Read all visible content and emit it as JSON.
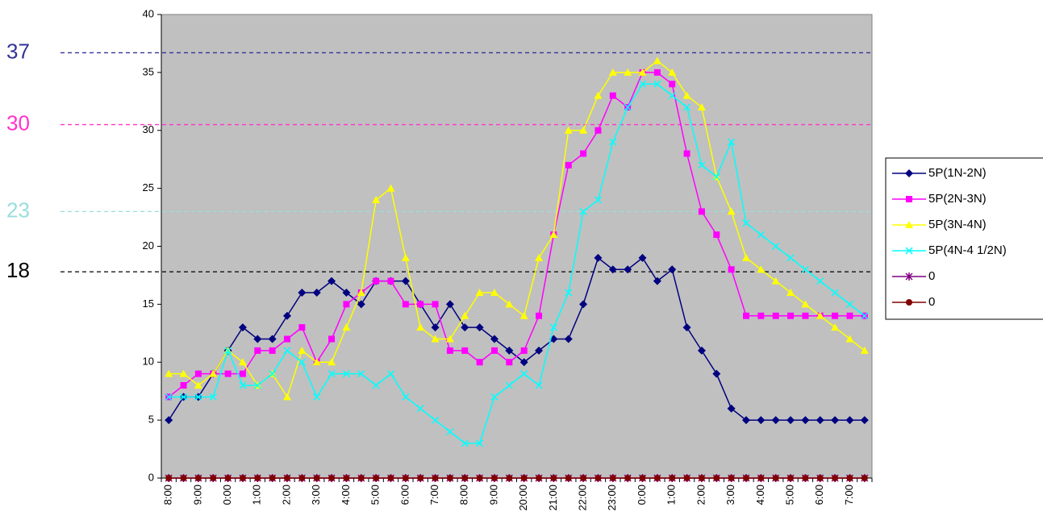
{
  "chart_data": {
    "type": "line",
    "categories": [
      "8:00",
      null,
      "9:00",
      null,
      "0:00",
      null,
      "1:00",
      null,
      "2:00",
      null,
      "3:00",
      null,
      "4:00",
      null,
      "5:00",
      null,
      "6:00",
      null,
      "7:00",
      null,
      "8:00",
      null,
      "9:00",
      null,
      "20:00",
      null,
      "21:00",
      null,
      "22:00",
      null,
      "23:00",
      null,
      "0:00",
      null,
      "1:00",
      null,
      "2:00",
      null,
      "3:00",
      null,
      "4:00",
      null,
      "5:00",
      null,
      "6:00",
      null,
      "7:00",
      null
    ],
    "series": [
      {
        "name": "5P(1N-2N)",
        "color": "#000080",
        "marker": "diamond",
        "values": [
          5,
          7,
          7,
          9,
          11,
          13,
          12,
          12,
          14,
          16,
          16,
          17,
          16,
          15,
          17,
          17,
          17,
          15,
          13,
          15,
          13,
          13,
          12,
          11,
          10,
          11,
          12,
          12,
          15,
          19,
          18,
          18,
          19,
          17,
          18,
          13,
          11,
          9,
          6,
          5,
          5,
          5,
          5,
          5,
          5,
          5,
          5,
          5
        ]
      },
      {
        "name": "5P(2N-3N)",
        "color": "#ff00ff",
        "marker": "square",
        "values": [
          7,
          8,
          9,
          9,
          9,
          9,
          11,
          11,
          12,
          13,
          10,
          12,
          15,
          16,
          17,
          17,
          15,
          15,
          15,
          11,
          11,
          10,
          11,
          10,
          11,
          14,
          21,
          27,
          28,
          30,
          33,
          32,
          35,
          35,
          34,
          28,
          23,
          21,
          18,
          14,
          14,
          14,
          14,
          14,
          14,
          14,
          14,
          14
        ]
      },
      {
        "name": "5P(3N-4N)",
        "color": "#ffff00",
        "marker": "triangle",
        "values": [
          9,
          9,
          8,
          9,
          11,
          10,
          8,
          9,
          7,
          11,
          10,
          10,
          13,
          16,
          24,
          25,
          19,
          13,
          12,
          12,
          14,
          16,
          16,
          15,
          14,
          19,
          21,
          30,
          30,
          33,
          35,
          35,
          35,
          36,
          35,
          33,
          32,
          26,
          23,
          19,
          18,
          17,
          16,
          15,
          14,
          13,
          12,
          11
        ]
      },
      {
        "name": "5P(4N-4 1/2N)",
        "color": "#00ffff",
        "marker": "x",
        "values": [
          7,
          7,
          7,
          7,
          11,
          8,
          8,
          9,
          11,
          10,
          7,
          9,
          9,
          9,
          8,
          9,
          7,
          6,
          5,
          4,
          3,
          3,
          7,
          8,
          9,
          8,
          13,
          16,
          23,
          24,
          29,
          32,
          34,
          34,
          33,
          32,
          27,
          26,
          29,
          22,
          21,
          20,
          19,
          18,
          17,
          16,
          15,
          14
        ]
      },
      {
        "name": "0",
        "color": "#800080",
        "marker": "asterisk",
        "values": [
          0,
          0,
          0,
          0,
          0,
          0,
          0,
          0,
          0,
          0,
          0,
          0,
          0,
          0,
          0,
          0,
          0,
          0,
          0,
          0,
          0,
          0,
          0,
          0,
          0,
          0,
          0,
          0,
          0,
          0,
          0,
          0,
          0,
          0,
          0,
          0,
          0,
          0,
          0,
          0,
          0,
          0,
          0,
          0,
          0,
          0,
          0,
          0
        ]
      },
      {
        "name": "0",
        "color": "#800000",
        "marker": "circle",
        "values": [
          0,
          0,
          0,
          0,
          0,
          0,
          0,
          0,
          0,
          0,
          0,
          0,
          0,
          0,
          0,
          0,
          0,
          0,
          0,
          0,
          0,
          0,
          0,
          0,
          0,
          0,
          0,
          0,
          0,
          0,
          0,
          0,
          0,
          0,
          0,
          0,
          0,
          0,
          0,
          0,
          0,
          0,
          0,
          0,
          0,
          0,
          0,
          0
        ]
      }
    ],
    "reference_lines": [
      {
        "value": 36.7,
        "label": "37",
        "color": "#333399"
      },
      {
        "value": 30.5,
        "label": "30",
        "color": "#ff33cc"
      },
      {
        "value": 23,
        "label": "23",
        "color": "#99dddd"
      },
      {
        "value": 17.8,
        "label": "18",
        "color": "#000000"
      }
    ],
    "ylim": [
      0,
      40
    ],
    "yticks": [
      0,
      5,
      10,
      15,
      20,
      25,
      30,
      35,
      40
    ],
    "plot_background": "#c0c0c0",
    "legend": "right"
  }
}
